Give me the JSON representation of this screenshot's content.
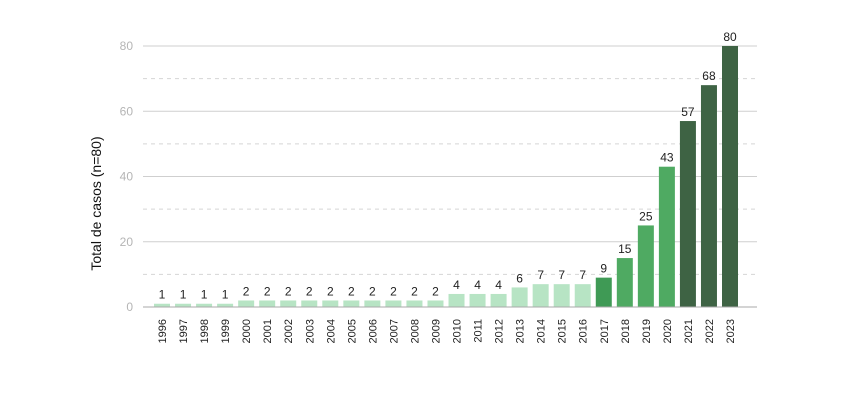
{
  "chart_data": {
    "type": "bar",
    "title": "",
    "xlabel": "",
    "ylabel": "Total de casos (n=80)",
    "ylim": [
      0,
      80
    ],
    "yticks": [
      0,
      20,
      40,
      60,
      80
    ],
    "grid": true,
    "categories": [
      "1996",
      "1997",
      "1998",
      "1999",
      "2000",
      "2001",
      "2002",
      "2003",
      "2004",
      "2005",
      "2006",
      "2007",
      "2008",
      "2009",
      "2010",
      "2011",
      "2012",
      "2013",
      "2014",
      "2015",
      "2016",
      "2017",
      "2018",
      "2019",
      "2020",
      "2021",
      "2022",
      "2023"
    ],
    "values": [
      1,
      1,
      1,
      1,
      2,
      2,
      2,
      2,
      2,
      2,
      2,
      2,
      2,
      2,
      4,
      4,
      4,
      6,
      7,
      7,
      7,
      9,
      15,
      25,
      43,
      57,
      68,
      80
    ],
    "colors": {
      "light": "#b7e4c4",
      "medium": "#3f9a55",
      "mid": "#4faa62",
      "dark": "#3e6344",
      "gridline": "#cfcfcf",
      "dashed_gridline": "#d5d5d5",
      "axis": "#aaaaaa"
    },
    "bar_color_tiers": [
      "light",
      "light",
      "light",
      "light",
      "light",
      "light",
      "light",
      "light",
      "light",
      "light",
      "light",
      "light",
      "light",
      "light",
      "light",
      "light",
      "light",
      "light",
      "light",
      "light",
      "light",
      "medium",
      "mid",
      "mid",
      "mid",
      "dark",
      "dark",
      "dark"
    ]
  }
}
